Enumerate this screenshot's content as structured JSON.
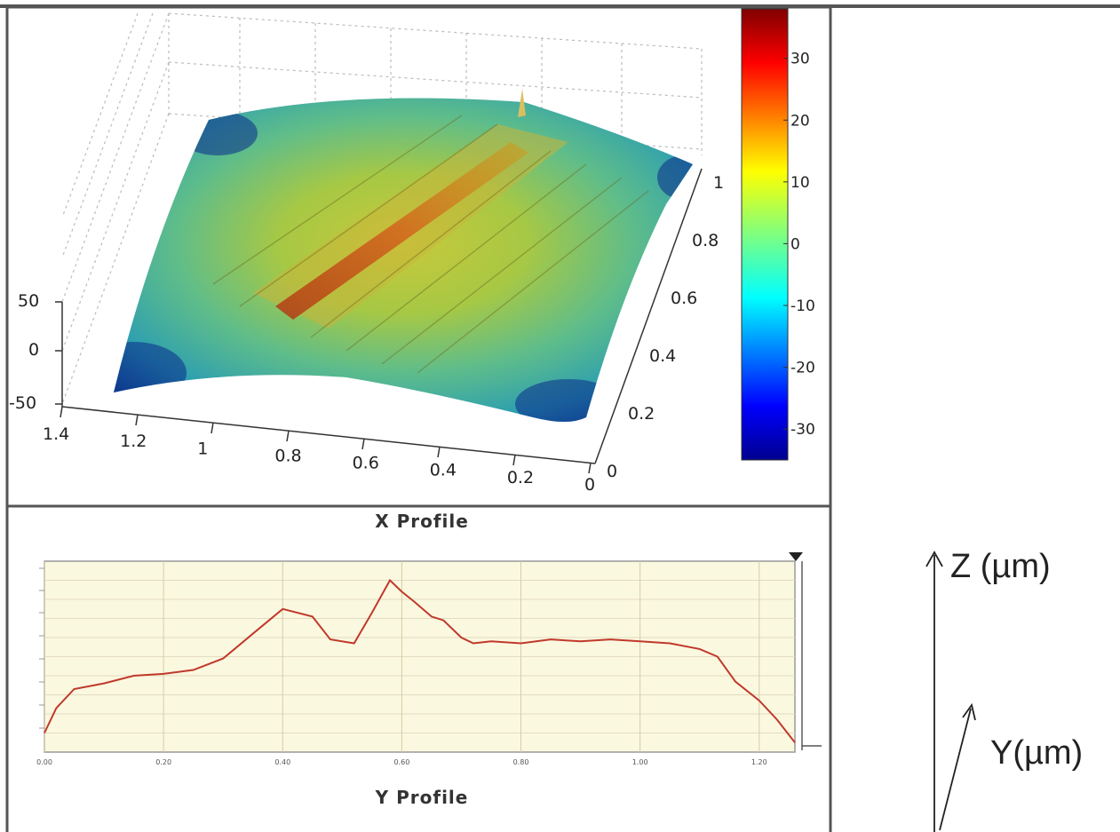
{
  "chart_data": [
    {
      "type": "surface",
      "title": "",
      "x_ticks": [
        "1.4",
        "1.2",
        "1",
        "0.8",
        "0.6",
        "0.4",
        "0.2",
        "0"
      ],
      "y_ticks": [
        "0",
        "0.2",
        "0.4",
        "0.6",
        "0.8",
        "1"
      ],
      "z_ticks": [
        "50",
        "0",
        "-50"
      ],
      "xlim": [
        0,
        1.4
      ],
      "ylim": [
        0,
        1
      ],
      "zlim": [
        -50,
        50
      ],
      "colorbar": {
        "ticks": [
          "30",
          "20",
          "10",
          "0",
          "-10",
          "-20",
          "-30"
        ],
        "range": [
          -35,
          38
        ],
        "colormap": "jet"
      },
      "grid": true
    },
    {
      "type": "line",
      "title": "X Profile",
      "xlabel": "Y Profile",
      "x_ticks": [
        "0.00",
        "0.20",
        "0.40",
        "0.60",
        "0.80",
        "1.00",
        "1.20"
      ],
      "series": [
        {
          "color": "#c0392b",
          "x": [
            0,
            0.02,
            0.05,
            0.1,
            0.15,
            0.2,
            0.25,
            0.3,
            0.35,
            0.4,
            0.45,
            0.48,
            0.52,
            0.55,
            0.58,
            0.6,
            0.62,
            0.65,
            0.67,
            0.7,
            0.72,
            0.75,
            0.8,
            0.85,
            0.9,
            0.95,
            1.0,
            1.05,
            1.1,
            1.13,
            1.16,
            1.2,
            1.23,
            1.26
          ],
          "y": [
            5,
            18,
            28,
            31,
            35,
            36,
            38,
            44,
            57,
            70,
            66,
            54,
            52,
            68,
            85,
            79,
            74,
            66,
            64,
            55,
            52,
            53,
            52,
            54,
            53,
            54,
            53,
            52,
            49,
            45,
            32,
            22,
            12,
            0
          ]
        }
      ],
      "ylim": [
        -5,
        95
      ],
      "xlim": [
        0,
        1.26
      ],
      "grid": true
    }
  ],
  "axes_indicator": {
    "z_label": "Z (µm)",
    "y_label": "Y(µm)"
  },
  "colors": {
    "plot_bg": "#fbf8e0",
    "line": "#c0392b",
    "frame": "#444444"
  }
}
